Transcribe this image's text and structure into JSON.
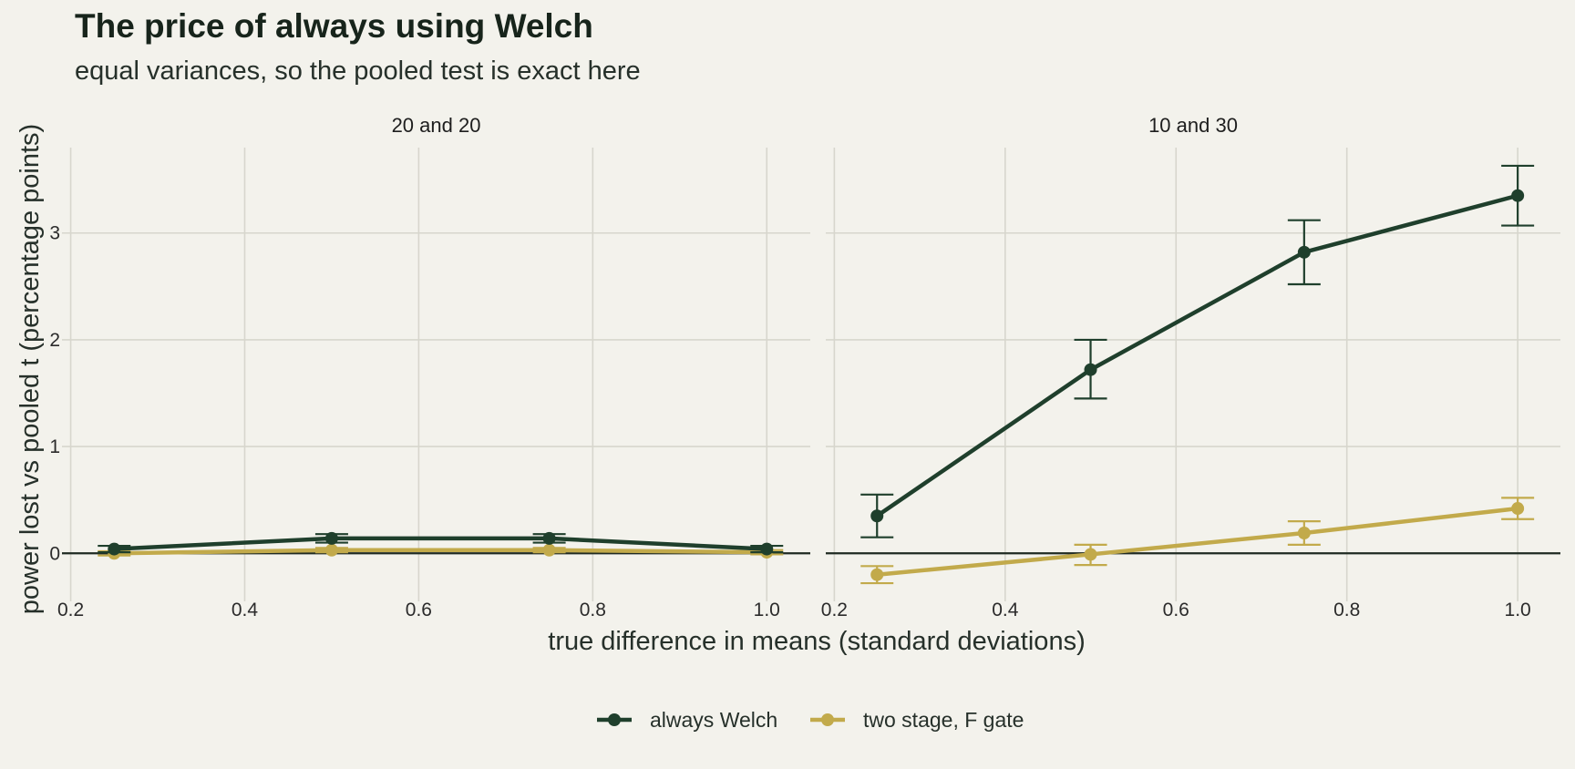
{
  "chart_data": {
    "type": "line",
    "title": "The price of always using Welch",
    "subtitle": "equal variances, so the pooled test is exact here",
    "xlabel": "true difference in means (standard deviations)",
    "ylabel": "power lost vs pooled t (percentage points)",
    "x_ticks": [
      "0.2",
      "0.4",
      "0.6",
      "0.8",
      "1.0"
    ],
    "y_ticks": [
      "0",
      "1",
      "2",
      "3"
    ],
    "xlim": [
      0.19,
      1.05
    ],
    "ylim": [
      -0.45,
      3.8
    ],
    "grid": true,
    "legend_position": "bottom",
    "colors": {
      "always Welch": "#1f3f2c",
      "two stage, F gate": "#c2aa4b"
    },
    "panels": [
      {
        "title": "20 and 20",
        "x": [
          0.25,
          0.5,
          0.75,
          1.0
        ],
        "series": [
          {
            "name": "always Welch",
            "y": [
              0.04,
              0.14,
              0.14,
              0.04
            ],
            "lo": [
              0.01,
              0.1,
              0.1,
              0.01
            ],
            "hi": [
              0.07,
              0.18,
              0.18,
              0.07
            ]
          },
          {
            "name": "two stage, F gate",
            "y": [
              0.0,
              0.03,
              0.03,
              0.01
            ],
            "lo": [
              -0.02,
              0.01,
              0.01,
              -0.01
            ],
            "hi": [
              0.02,
              0.05,
              0.05,
              0.03
            ]
          }
        ]
      },
      {
        "title": "10 and 30",
        "x": [
          0.25,
          0.5,
          0.75,
          1.0
        ],
        "series": [
          {
            "name": "always Welch",
            "y": [
              0.35,
              1.72,
              2.82,
              3.35
            ],
            "lo": [
              0.15,
              1.45,
              2.52,
              3.07
            ],
            "hi": [
              0.55,
              2.0,
              3.12,
              3.63
            ]
          },
          {
            "name": "two stage, F gate",
            "y": [
              -0.2,
              -0.01,
              0.19,
              0.42
            ],
            "lo": [
              -0.28,
              -0.11,
              0.08,
              0.32
            ],
            "hi": [
              -0.12,
              0.08,
              0.3,
              0.52
            ]
          }
        ]
      }
    ]
  }
}
